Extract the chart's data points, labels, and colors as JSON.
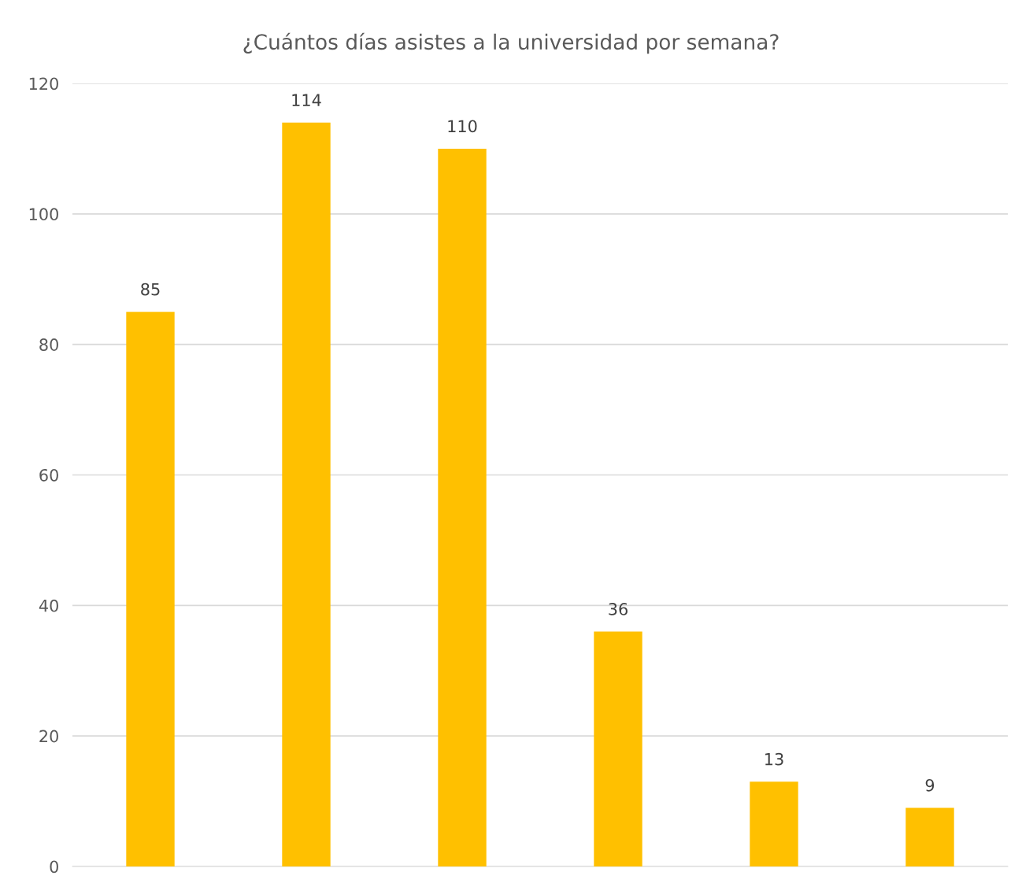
{
  "chart_data": {
    "type": "bar",
    "title": "¿Cuántos días asistes a la universidad por semana?",
    "categories": [
      null,
      null,
      null,
      null,
      null,
      null
    ],
    "values": [
      85,
      114,
      110,
      36,
      13,
      9
    ],
    "color": "#ffc000",
    "ylim": [
      0,
      120
    ],
    "yticks": [
      0,
      20,
      40,
      60,
      80,
      100,
      120
    ],
    "grid": "y",
    "data_labels": true,
    "tick_labels": "y"
  }
}
